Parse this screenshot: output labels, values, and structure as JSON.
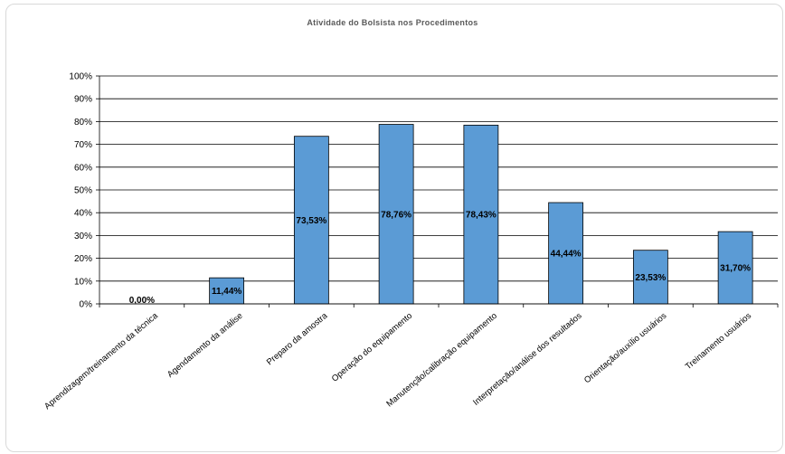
{
  "chart_data": {
    "type": "bar",
    "title": "Atividade do Bolsista nos Procedimentos",
    "categories": [
      "Aprendizagem/treinamento da técnica",
      "Agendamento da análise",
      "Preparo da amostra",
      "Operação do equipamento",
      "Manutenção/calibração equipamento",
      "Interpretação/análise dos resultados",
      "Orientação/auxílio usuários",
      "Treinamento usuários"
    ],
    "values": [
      0.0,
      11.44,
      73.53,
      78.76,
      78.43,
      44.44,
      23.53,
      31.7
    ],
    "data_labels": [
      "0,00%",
      "11,44%",
      "73,53%",
      "78,76%",
      "78,43%",
      "44,44%",
      "23,53%",
      "31,70%"
    ],
    "y_ticks": [
      "0%",
      "10%",
      "20%",
      "30%",
      "40%",
      "50%",
      "60%",
      "70%",
      "80%",
      "90%",
      "100%"
    ],
    "ylim": [
      0,
      100
    ],
    "xlabel": "",
    "ylabel": "",
    "grid": true,
    "legend": "none",
    "colors": {
      "bar": "#5b9bd5",
      "bar_border": "#000000",
      "grid": "#000000"
    }
  }
}
